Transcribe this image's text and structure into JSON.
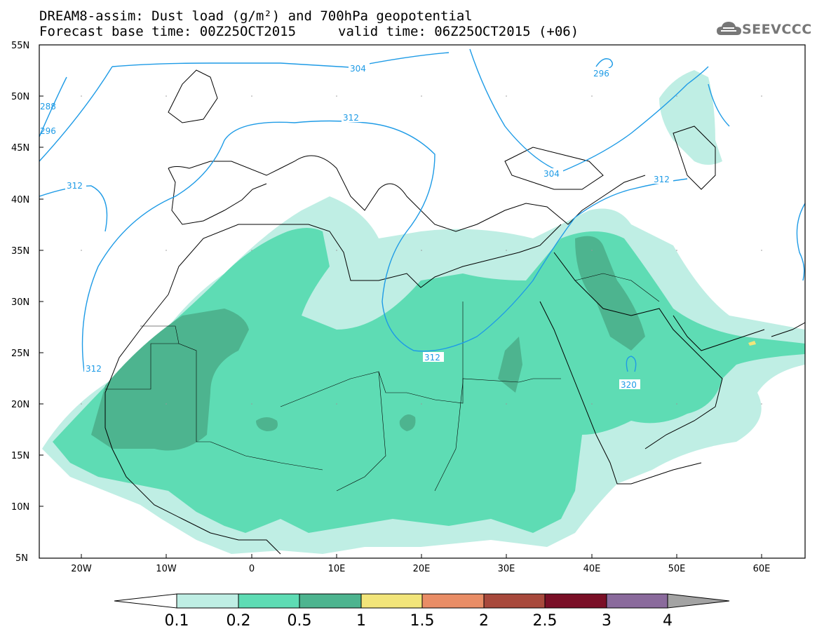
{
  "header": {
    "line1": "DREAM8-assim: Dust load (g/m²) and 700hPa geopotential",
    "line2_base": "Forecast base time: 00Z25OCT2015",
    "line2_valid": "valid time: 06Z25OCT2015 (+06)",
    "logo": "SEEVCCC"
  },
  "map": {
    "lat_labels": [
      "55N",
      "50N",
      "45N",
      "40N",
      "35N",
      "30N",
      "25N",
      "20N",
      "15N",
      "10N",
      "5N"
    ],
    "lon_labels": [
      "20W",
      "10W",
      "0",
      "10E",
      "20E",
      "30E",
      "40E",
      "50E",
      "60E"
    ],
    "contour_labels": [
      "304",
      "312",
      "296",
      "312",
      "304",
      "312",
      "312",
      "312",
      "320",
      "288",
      "296"
    ]
  },
  "colorbar": {
    "labels": [
      "0.1",
      "0.2",
      "0.5",
      "1",
      "1.5",
      "2",
      "2.5",
      "3",
      "4"
    ],
    "colors": [
      "#bfeee4",
      "#5edcb4",
      "#4db48f",
      "#f2e57a",
      "#e98d66",
      "#a8493c",
      "#7a0f27",
      "#8a6a9c",
      "#a3a3a3"
    ]
  },
  "colors": {
    "light_dust": "#bfeee4",
    "mid_dust": "#5edcb4",
    "dark_dust": "#4db48f",
    "contour": "#1e9be6"
  }
}
